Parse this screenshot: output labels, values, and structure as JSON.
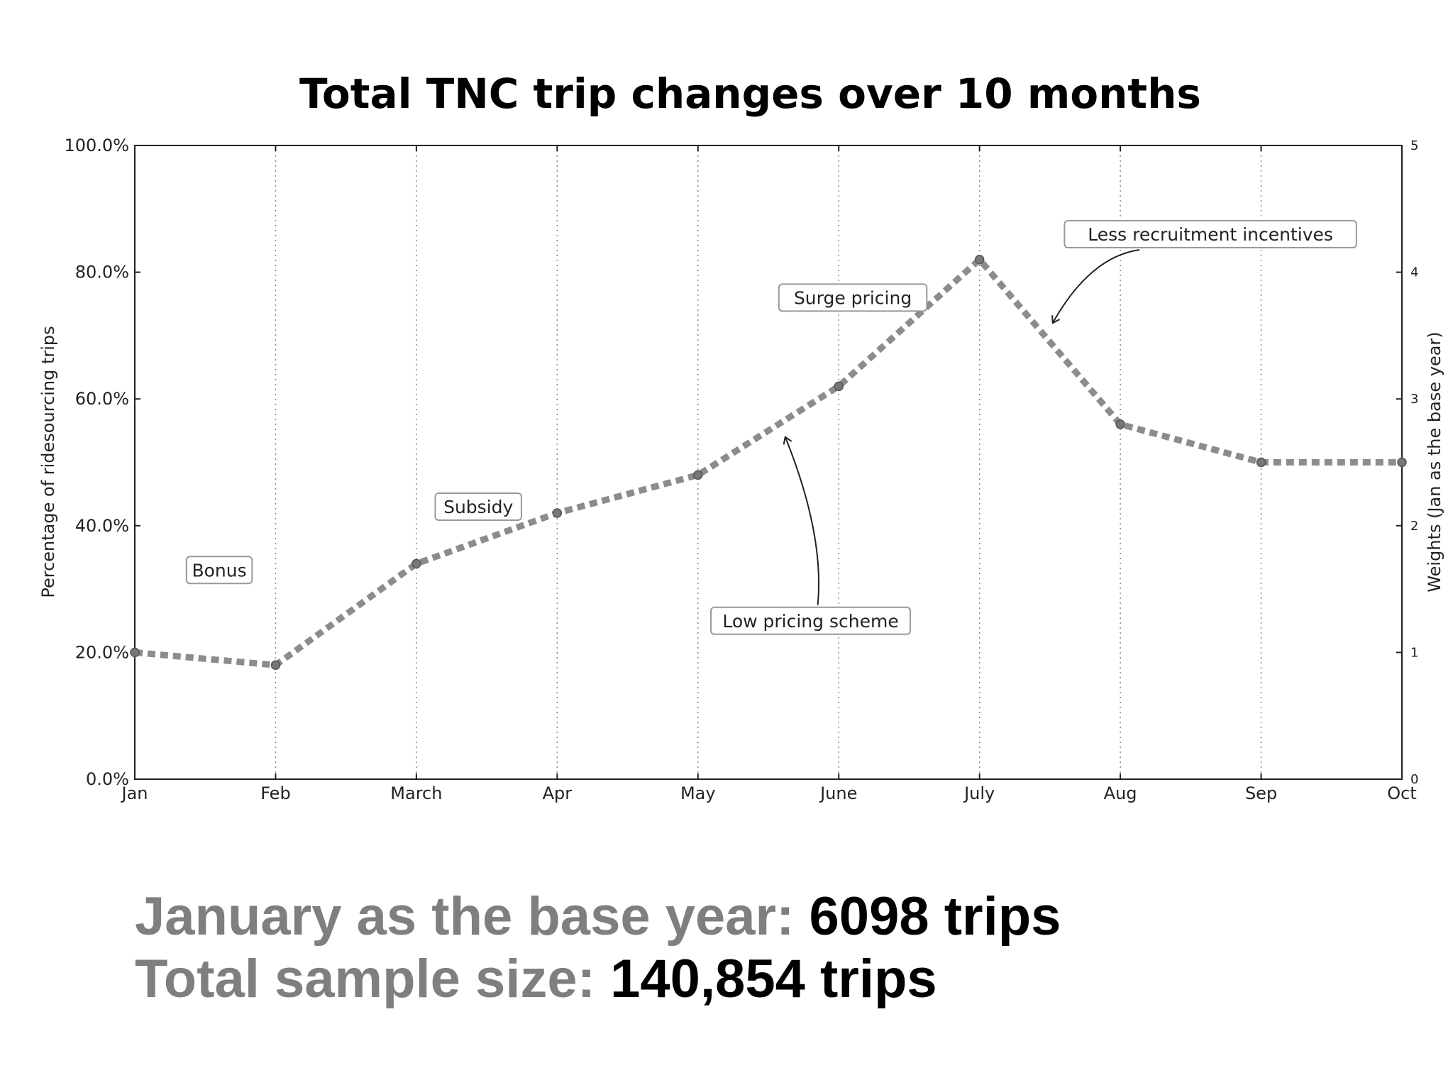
{
  "chart_data": {
    "type": "line",
    "title": "Total TNC trip changes over 10 months",
    "categories": [
      "Jan",
      "Feb",
      "March",
      "Apr",
      "May",
      "June",
      "July",
      "Aug",
      "Sep",
      "Oct"
    ],
    "series": [
      {
        "values": [
          20,
          18,
          34,
          42,
          48,
          62,
          82,
          56,
          50,
          50
        ]
      }
    ],
    "ylabel": "Percentage of ridesourcing trips",
    "ylabel_right": "Weights (Jan as the base year)",
    "ylim": [
      0,
      100
    ],
    "yticks": [
      "0.0%",
      "20.0%",
      "40.0%",
      "60.0%",
      "80.0%",
      "100.0%"
    ],
    "ylim_right": [
      0,
      5
    ],
    "yticks_right": [
      "0",
      "1",
      "2",
      "3",
      "4",
      "5"
    ],
    "grid": "vertical dotted",
    "line_style": "dashed",
    "line_color": "#8c8c8c",
    "annotations": [
      {
        "text": "Bonus",
        "x": "Feb",
        "y": 33,
        "arrow": false
      },
      {
        "text": "Subsidy",
        "x": "March",
        "y": 43,
        "arrow": false
      },
      {
        "text": "Low pricing scheme",
        "x": "June",
        "y": 25,
        "arrow": true,
        "arrow_to_x": "May",
        "arrow_to_y": 54
      },
      {
        "text": "Surge pricing",
        "x": "June",
        "y": 76,
        "arrow": false
      },
      {
        "text": "Less recruitment incentives",
        "x": "Aug",
        "y": 86,
        "arrow": true,
        "arrow_to_x": "July",
        "arrow_to_y": 72
      }
    ]
  },
  "footer": {
    "base_label": "January as the base year:",
    "base_value": "6098 trips",
    "sample_label": "Total sample size:",
    "sample_value": "140,854 trips"
  }
}
